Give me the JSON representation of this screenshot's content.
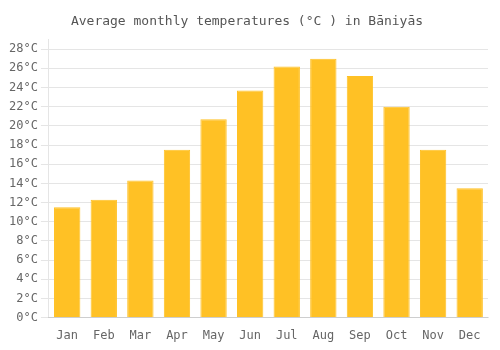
{
  "chart_data": {
    "type": "bar",
    "title": "Average monthly temperatures (°C ) in Bāniyās",
    "categories": [
      "Jan",
      "Feb",
      "Mar",
      "Apr",
      "May",
      "Jun",
      "Jul",
      "Aug",
      "Sep",
      "Oct",
      "Nov",
      "Dec"
    ],
    "values": [
      11.5,
      12.3,
      14.3,
      17.5,
      20.7,
      23.7,
      26.2,
      27.0,
      25.2,
      22.0,
      17.5,
      13.5
    ],
    "color": "#FFC125",
    "ylim": [
      0,
      29
    ],
    "yticks": [
      {
        "value": 0,
        "label": "0°C"
      },
      {
        "value": 2,
        "label": "2°C"
      },
      {
        "value": 4,
        "label": "4°C"
      },
      {
        "value": 6,
        "label": "6°C"
      },
      {
        "value": 8,
        "label": "8°C"
      },
      {
        "value": 10,
        "label": "10°C"
      },
      {
        "value": 12,
        "label": "12°C"
      },
      {
        "value": 14,
        "label": "14°C"
      },
      {
        "value": 16,
        "label": "16°C"
      },
      {
        "value": 18,
        "label": "18°C"
      },
      {
        "value": 20,
        "label": "20°C"
      },
      {
        "value": 22,
        "label": "22°C"
      },
      {
        "value": 24,
        "label": "24°C"
      },
      {
        "value": 26,
        "label": "26°C"
      },
      {
        "value": 28,
        "label": "28°C"
      }
    ],
    "grid": true
  }
}
